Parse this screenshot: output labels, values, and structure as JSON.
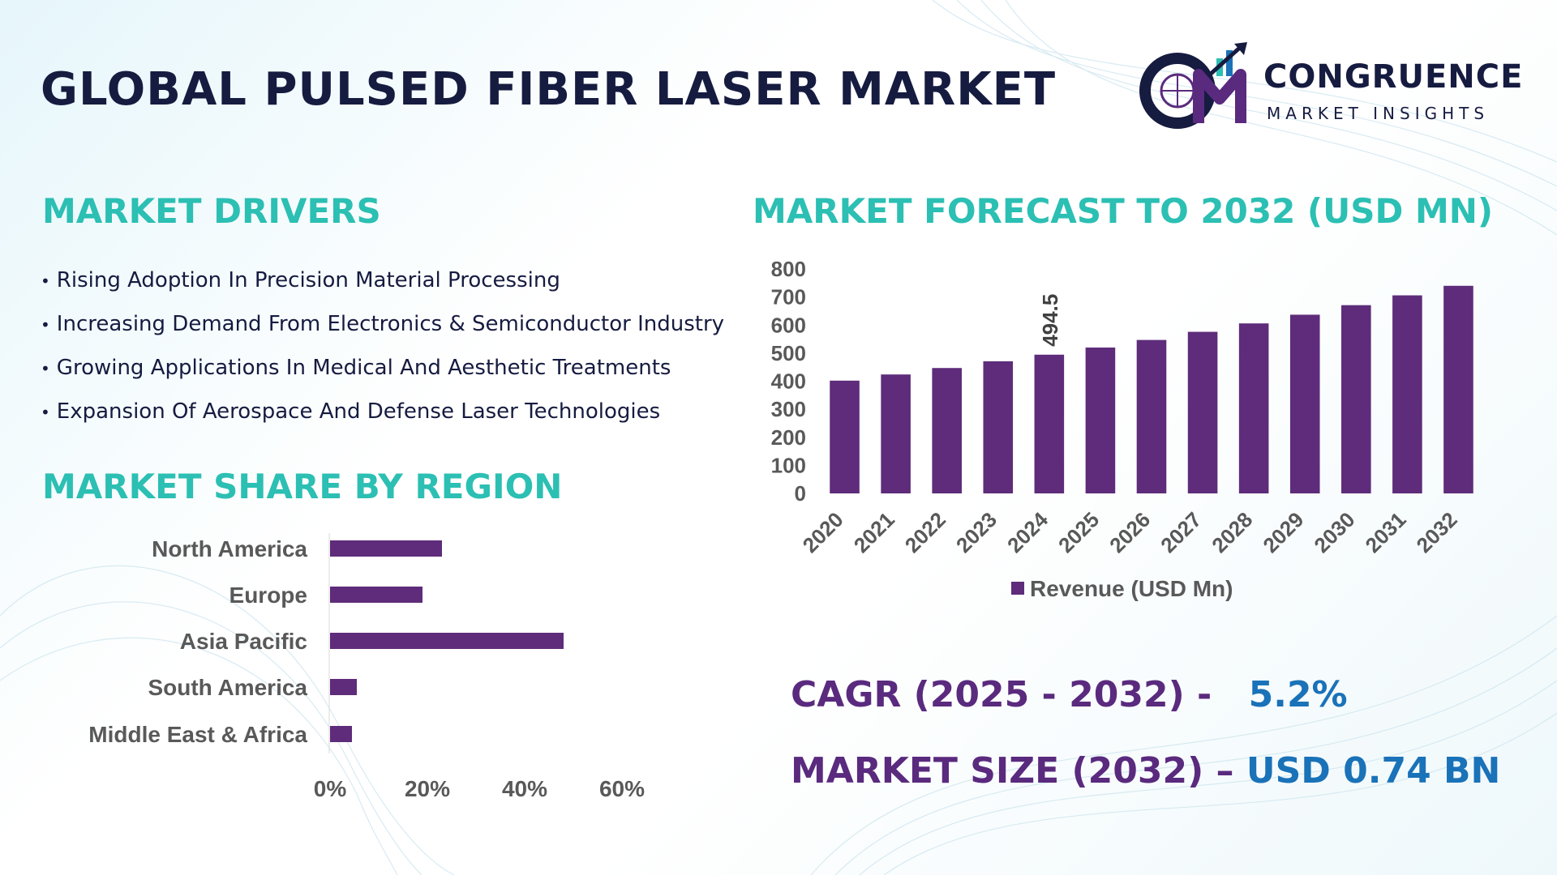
{
  "header": {
    "title": "GLOBAL PULSED FIBER LASER MARKET",
    "logo_name": "CONGRUENCE",
    "logo_subtitle": "MARKET INSIGHTS",
    "logo_monogram": "CM"
  },
  "drivers": {
    "title": "MARKET DRIVERS",
    "bullet": "•",
    "items": [
      "Rising Adoption In Precision Material Processing",
      "Increasing Demand From Electronics & Semiconductor Industry",
      "Growing Applications In Medical And Aesthetic Treatments",
      "Expansion Of Aerospace And Defense Laser Technologies"
    ]
  },
  "region": {
    "title": "MARKET SHARE BY REGION"
  },
  "forecast": {
    "title": "MARKET FORECAST TO 2032 (USD MN)"
  },
  "stats": {
    "cagr_label": "CAGR (2025 - 2032) -",
    "cagr_value": "5.2%",
    "size_label": "MARKET SIZE (2032) –",
    "size_value": "USD 0.74 BN"
  },
  "colors": {
    "bar": "#5e2c7a",
    "section_title": "#2cbfb3",
    "title": "#161b40",
    "stat_label": "#5a2a7e",
    "stat_value": "#1a72b8",
    "axis_text": "#595959"
  },
  "chart_data": [
    {
      "type": "bar",
      "orientation": "vertical",
      "categories": [
        "2020",
        "2021",
        "2022",
        "2023",
        "2024",
        "2025",
        "2026",
        "2027",
        "2028",
        "2029",
        "2030",
        "2031",
        "2032"
      ],
      "series": [
        {
          "name": "Revenue (USD Mn)",
          "values": [
            402,
            424,
            447,
            471,
            494.5,
            520,
            547,
            576,
            606,
            637,
            671,
            706,
            740
          ]
        }
      ],
      "data_labels": [
        {
          "category": "2024",
          "label": "494.5"
        }
      ],
      "y_ticks": [
        "0",
        "100",
        "200",
        "300",
        "400",
        "500",
        "600",
        "700",
        "800"
      ],
      "ylim": [
        0,
        800
      ],
      "grid": false,
      "legend_position": "bottom"
    },
    {
      "type": "bar",
      "orientation": "horizontal",
      "categories": [
        "North America",
        "Europe",
        "Asia Pacific",
        "South America",
        "Middle East & Africa"
      ],
      "values": [
        23,
        19,
        48,
        5.5,
        4.5
      ],
      "x_ticks": [
        "0%",
        "20%",
        "40%",
        "60%"
      ],
      "xlim": [
        0,
        60
      ],
      "grid": false,
      "legend_position": "none"
    }
  ]
}
